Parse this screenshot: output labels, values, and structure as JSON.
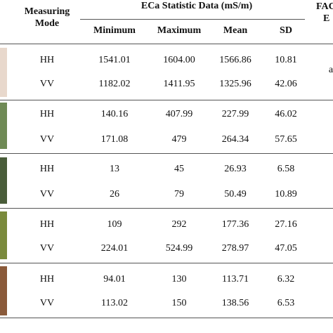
{
  "header": {
    "mode_line1": "Measuring",
    "mode_line2": "Mode",
    "group_title": "ECa Statistic Data (mS/m)",
    "right_cut_line1": "FAC",
    "right_cut_line2": "E",
    "columns": [
      "Minimum",
      "Maximum",
      "Mean",
      "SD"
    ]
  },
  "groups": [
    {
      "rows": [
        {
          "mode": "HH",
          "values": [
            "1541.01",
            "1604.00",
            "1566.86",
            "10.81"
          ]
        },
        {
          "mode": "VV",
          "values": [
            "1182.02",
            "1411.95",
            "1325.96",
            "42.06"
          ]
        }
      ],
      "right_mark": "a"
    },
    {
      "rows": [
        {
          "mode": "HH",
          "values": [
            "140.16",
            "407.99",
            "227.99",
            "46.02"
          ]
        },
        {
          "mode": "VV",
          "values": [
            "171.08",
            "479",
            "264.34",
            "57.65"
          ]
        }
      ]
    },
    {
      "rows": [
        {
          "mode": "HH",
          "values": [
            "13",
            "45",
            "26.93",
            "6.58"
          ]
        },
        {
          "mode": "VV",
          "values": [
            "26",
            "79",
            "50.49",
            "10.89"
          ]
        }
      ]
    },
    {
      "rows": [
        {
          "mode": "HH",
          "values": [
            "109",
            "292",
            "177.36",
            "27.16"
          ]
        },
        {
          "mode": "VV",
          "values": [
            "224.01",
            "524.99",
            "278.97",
            "47.05"
          ]
        }
      ]
    },
    {
      "rows": [
        {
          "mode": "HH",
          "values": [
            "94.01",
            "130",
            "113.71",
            "6.32"
          ]
        },
        {
          "mode": "VV",
          "values": [
            "113.02",
            "150",
            "138.56",
            "6.53"
          ]
        }
      ]
    }
  ],
  "colors": {
    "rule": "#555555",
    "thumb_colors": [
      "#e8d8cc",
      "#6f8a55",
      "#4a5d3a",
      "#7a8a3c",
      "#8a5a3a"
    ]
  }
}
